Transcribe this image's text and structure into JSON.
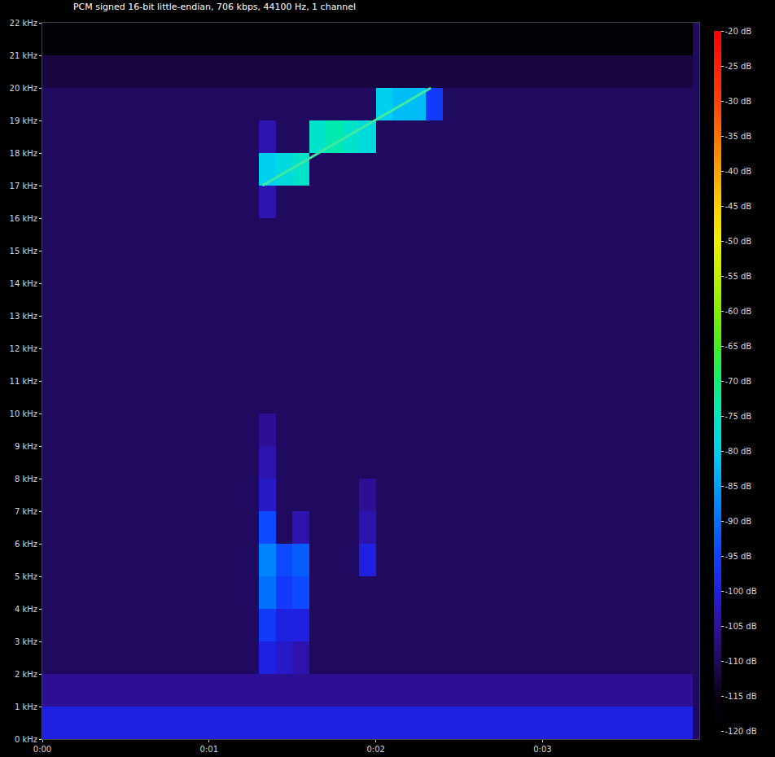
{
  "chart_data": {
    "type": "heatmap",
    "title": "PCM signed 16-bit little-endian, 706 kbps, 44100 Hz, 1 channel",
    "xlim": [
      0,
      3.94
    ],
    "xticks": [
      {
        "value": 0,
        "label": "0:00"
      },
      {
        "value": 1,
        "label": "0:01"
      },
      {
        "value": 2,
        "label": "0:02"
      },
      {
        "value": 3,
        "label": "0:03"
      }
    ],
    "ylim": [
      0,
      22
    ],
    "yticks": [
      {
        "value": 0,
        "label": "0 kHz"
      },
      {
        "value": 1,
        "label": "1 kHz"
      },
      {
        "value": 2,
        "label": "2 kHz"
      },
      {
        "value": 3,
        "label": "3 kHz"
      },
      {
        "value": 4,
        "label": "4 kHz"
      },
      {
        "value": 5,
        "label": "5 kHz"
      },
      {
        "value": 6,
        "label": "6 kHz"
      },
      {
        "value": 7,
        "label": "7 kHz"
      },
      {
        "value": 8,
        "label": "8 kHz"
      },
      {
        "value": 9,
        "label": "9 kHz"
      },
      {
        "value": 10,
        "label": "10 kHz"
      },
      {
        "value": 11,
        "label": "11 kHz"
      },
      {
        "value": 12,
        "label": "12 kHz"
      },
      {
        "value": 13,
        "label": "13 kHz"
      },
      {
        "value": 14,
        "label": "14 kHz"
      },
      {
        "value": 15,
        "label": "15 kHz"
      },
      {
        "value": 16,
        "label": "16 kHz"
      },
      {
        "value": 17,
        "label": "17 kHz"
      },
      {
        "value": 18,
        "label": "18 kHz"
      },
      {
        "value": 19,
        "label": "19 kHz"
      },
      {
        "value": 20,
        "label": "20 kHz"
      },
      {
        "value": 21,
        "label": "21 kHz"
      },
      {
        "value": 22,
        "label": "22 kHz"
      }
    ],
    "grid": false,
    "colorbar": {
      "range": [
        -120,
        -20
      ],
      "ticks": [
        {
          "value": -20,
          "label": "-20 dB"
        },
        {
          "value": -25,
          "label": "-25 dB"
        },
        {
          "value": -30,
          "label": "-30 dB"
        },
        {
          "value": -35,
          "label": "-35 dB"
        },
        {
          "value": -40,
          "label": "-40 dB"
        },
        {
          "value": -45,
          "label": "-45 dB"
        },
        {
          "value": -50,
          "label": "-50 dB"
        },
        {
          "value": -55,
          "label": "-55 dB"
        },
        {
          "value": -60,
          "label": "-60 dB"
        },
        {
          "value": -65,
          "label": "-65 dB"
        },
        {
          "value": -70,
          "label": "-70 dB"
        },
        {
          "value": -75,
          "label": "-75 dB"
        },
        {
          "value": -80,
          "label": "-80 dB"
        },
        {
          "value": -85,
          "label": "-85 dB"
        },
        {
          "value": -90,
          "label": "-90 dB"
        },
        {
          "value": -95,
          "label": "-95 dB"
        },
        {
          "value": -100,
          "label": "-100 dB"
        },
        {
          "value": -105,
          "label": "-105 dB"
        },
        {
          "value": -110,
          "label": "-110 dB"
        },
        {
          "value": -115,
          "label": "-115 dB"
        },
        {
          "value": -120,
          "label": "-120 dB"
        }
      ]
    },
    "x": [
      0.05,
      0.15,
      0.25,
      0.35,
      0.45,
      0.55,
      0.65,
      0.75,
      0.85,
      0.95,
      1.05,
      1.15,
      1.25,
      1.35,
      1.45,
      1.55,
      1.65,
      1.75,
      1.85,
      1.95,
      2.05,
      2.15,
      2.25,
      2.35,
      2.45,
      2.55,
      2.65,
      2.75,
      2.85,
      2.95,
      3.05,
      3.15,
      3.25,
      3.35,
      3.45,
      3.55,
      3.65,
      3.75,
      3.85
    ],
    "y": [
      0.5,
      1.5,
      2.5,
      3.5,
      4.5,
      5.5,
      6.5,
      7.5,
      8.5,
      9.5,
      10.5,
      11.5,
      12.5,
      13.5,
      14.5,
      15.5,
      16.5,
      17.5,
      18.5,
      19.5,
      20.5,
      21.5
    ],
    "z": [
      [
        -100,
        -100,
        -100,
        -100,
        -100,
        -100,
        -100,
        -100,
        -100,
        -100,
        -100,
        -100,
        -100,
        -100,
        -100,
        -100,
        -100,
        -100,
        -100,
        -100,
        -100,
        -100,
        -100,
        -100,
        -100,
        -100,
        -100,
        -100,
        -100,
        -100,
        -100,
        -100,
        -100,
        -100,
        -100,
        -100,
        -100,
        -100,
        -100
      ],
      [
        -106,
        -106,
        -106,
        -106,
        -106,
        -106,
        -106,
        -106,
        -106,
        -106,
        -106,
        -106,
        -106,
        -106,
        -106,
        -106,
        -106,
        -106,
        -106,
        -106,
        -106,
        -106,
        -106,
        -106,
        -106,
        -106,
        -106,
        -106,
        -106,
        -106,
        -106,
        -106,
        -106,
        -106,
        -106,
        -106,
        -106,
        -106,
        -106
      ],
      [
        -110,
        -110,
        -110,
        -110,
        -110,
        -110,
        -110,
        -110,
        -110,
        -110,
        -110,
        -110,
        -110,
        -100,
        -102,
        -104,
        -110,
        -110,
        -110,
        -110,
        -110,
        -110,
        -110,
        -110,
        -110,
        -110,
        -110,
        -110,
        -110,
        -110,
        -110,
        -110,
        -110,
        -110,
        -110,
        -110,
        -110,
        -110,
        -110
      ],
      [
        -110,
        -110,
        -110,
        -110,
        -110,
        -110,
        -110,
        -110,
        -110,
        -110,
        -110,
        -110,
        -110,
        -96,
        -100,
        -100,
        -110,
        -110,
        -110,
        -110,
        -110,
        -110,
        -110,
        -110,
        -110,
        -110,
        -110,
        -110,
        -110,
        -110,
        -110,
        -110,
        -110,
        -110,
        -110,
        -110,
        -110,
        -110,
        -110
      ],
      [
        -110,
        -110,
        -110,
        -110,
        -110,
        -110,
        -110,
        -110,
        -110,
        -110,
        -110,
        -110,
        -110,
        -90,
        -96,
        -94,
        -110,
        -110,
        -110,
        -110,
        -110,
        -110,
        -110,
        -110,
        -110,
        -110,
        -110,
        -110,
        -110,
        -110,
        -110,
        -110,
        -110,
        -110,
        -110,
        -110,
        -110,
        -110,
        -110
      ],
      [
        -110,
        -110,
        -110,
        -110,
        -110,
        -110,
        -110,
        -110,
        -110,
        -110,
        -110,
        -110,
        -110,
        -88,
        -94,
        -92,
        -110,
        -110,
        -110,
        -100,
        -110,
        -110,
        -110,
        -110,
        -110,
        -110,
        -110,
        -110,
        -110,
        -110,
        -110,
        -110,
        -110,
        -110,
        -110,
        -110,
        -110,
        -110,
        -110
      ],
      [
        -110,
        -110,
        -110,
        -110,
        -110,
        -110,
        -110,
        -110,
        -110,
        -110,
        -110,
        -110,
        -110,
        -94,
        -110,
        -104,
        -110,
        -110,
        -110,
        -104,
        -110,
        -110,
        -110,
        -110,
        -110,
        -110,
        -110,
        -110,
        -110,
        -110,
        -110,
        -110,
        -110,
        -110,
        -110,
        -110,
        -110,
        -110,
        -110
      ],
      [
        -110,
        -110,
        -110,
        -110,
        -110,
        -110,
        -110,
        -110,
        -110,
        -110,
        -110,
        -110,
        -110,
        -102,
        -110,
        -110,
        -110,
        -110,
        -110,
        -106,
        -110,
        -110,
        -110,
        -110,
        -110,
        -110,
        -110,
        -110,
        -110,
        -110,
        -110,
        -110,
        -110,
        -110,
        -110,
        -110,
        -110,
        -110,
        -110
      ],
      [
        -110,
        -110,
        -110,
        -110,
        -110,
        -110,
        -110,
        -110,
        -110,
        -110,
        -110,
        -110,
        -110,
        -104,
        -110,
        -110,
        -110,
        -110,
        -110,
        -110,
        -110,
        -110,
        -110,
        -110,
        -110,
        -110,
        -110,
        -110,
        -110,
        -110,
        -110,
        -110,
        -110,
        -110,
        -110,
        -110,
        -110,
        -110,
        -110
      ],
      [
        -110,
        -110,
        -110,
        -110,
        -110,
        -110,
        -110,
        -110,
        -110,
        -110,
        -110,
        -110,
        -110,
        -106,
        -110,
        -110,
        -110,
        -110,
        -110,
        -110,
        -110,
        -110,
        -110,
        -110,
        -110,
        -110,
        -110,
        -110,
        -110,
        -110,
        -110,
        -110,
        -110,
        -110,
        -110,
        -110,
        -110,
        -110,
        -110
      ],
      [
        -110,
        -110,
        -110,
        -110,
        -110,
        -110,
        -110,
        -110,
        -110,
        -110,
        -110,
        -110,
        -110,
        -110,
        -110,
        -110,
        -110,
        -110,
        -110,
        -110,
        -110,
        -110,
        -110,
        -110,
        -110,
        -110,
        -110,
        -110,
        -110,
        -110,
        -110,
        -110,
        -110,
        -110,
        -110,
        -110,
        -110,
        -110,
        -110
      ],
      [
        -110,
        -110,
        -110,
        -110,
        -110,
        -110,
        -110,
        -110,
        -110,
        -110,
        -110,
        -110,
        -110,
        -110,
        -110,
        -110,
        -110,
        -110,
        -110,
        -110,
        -110,
        -110,
        -110,
        -110,
        -110,
        -110,
        -110,
        -110,
        -110,
        -110,
        -110,
        -110,
        -110,
        -110,
        -110,
        -110,
        -110,
        -110,
        -110
      ],
      [
        -110,
        -110,
        -110,
        -110,
        -110,
        -110,
        -110,
        -110,
        -110,
        -110,
        -110,
        -110,
        -110,
        -110,
        -110,
        -110,
        -110,
        -110,
        -110,
        -110,
        -110,
        -110,
        -110,
        -110,
        -110,
        -110,
        -110,
        -110,
        -110,
        -110,
        -110,
        -110,
        -110,
        -110,
        -110,
        -110,
        -110,
        -110,
        -110
      ],
      [
        -110,
        -110,
        -110,
        -110,
        -110,
        -110,
        -110,
        -110,
        -110,
        -110,
        -110,
        -110,
        -110,
        -110,
        -110,
        -110,
        -110,
        -110,
        -110,
        -110,
        -110,
        -110,
        -110,
        -110,
        -110,
        -110,
        -110,
        -110,
        -110,
        -110,
        -110,
        -110,
        -110,
        -110,
        -110,
        -110,
        -110,
        -110,
        -110
      ],
      [
        -110,
        -110,
        -110,
        -110,
        -110,
        -110,
        -110,
        -110,
        -110,
        -110,
        -110,
        -110,
        -110,
        -110,
        -110,
        -110,
        -110,
        -110,
        -110,
        -110,
        -110,
        -110,
        -110,
        -110,
        -110,
        -110,
        -110,
        -110,
        -110,
        -110,
        -110,
        -110,
        -110,
        -110,
        -110,
        -110,
        -110,
        -110,
        -110
      ],
      [
        -110,
        -110,
        -110,
        -110,
        -110,
        -110,
        -110,
        -110,
        -110,
        -110,
        -110,
        -110,
        -110,
        -110,
        -110,
        -110,
        -110,
        -110,
        -110,
        -110,
        -110,
        -110,
        -110,
        -110,
        -110,
        -110,
        -110,
        -110,
        -110,
        -110,
        -110,
        -110,
        -110,
        -110,
        -110,
        -110,
        -110,
        -110,
        -110
      ],
      [
        -110,
        -110,
        -110,
        -110,
        -110,
        -110,
        -110,
        -110,
        -110,
        -110,
        -110,
        -110,
        -110,
        -104,
        -110,
        -110,
        -110,
        -110,
        -110,
        -110,
        -110,
        -110,
        -110,
        -110,
        -110,
        -110,
        -110,
        -110,
        -110,
        -110,
        -110,
        -110,
        -110,
        -110,
        -110,
        -110,
        -110,
        -110,
        -110
      ],
      [
        -110,
        -110,
        -110,
        -110,
        -110,
        -110,
        -110,
        -110,
        -110,
        -110,
        -110,
        -110,
        -110,
        -80,
        -78,
        -76,
        -110,
        -110,
        -110,
        -110,
        -110,
        -110,
        -110,
        -110,
        -110,
        -110,
        -110,
        -110,
        -110,
        -110,
        -110,
        -110,
        -110,
        -110,
        -110,
        -110,
        -110,
        -110,
        -110
      ],
      [
        -110,
        -110,
        -110,
        -110,
        -110,
        -110,
        -110,
        -110,
        -110,
        -110,
        -110,
        -110,
        -110,
        -104,
        -110,
        -110,
        -76,
        -74,
        -76,
        -78,
        -110,
        -110,
        -110,
        -110,
        -110,
        -110,
        -110,
        -110,
        -110,
        -110,
        -110,
        -110,
        -110,
        -110,
        -110,
        -110,
        -110,
        -110,
        -110
      ],
      [
        -110,
        -110,
        -110,
        -110,
        -110,
        -110,
        -110,
        -110,
        -110,
        -110,
        -110,
        -110,
        -110,
        -110,
        -110,
        -110,
        -110,
        -110,
        -110,
        -110,
        -80,
        -82,
        -82,
        -96,
        -110,
        -110,
        -110,
        -110,
        -110,
        -110,
        -110,
        -110,
        -110,
        -110,
        -110,
        -110,
        -110,
        -110,
        -110
      ],
      [
        -112,
        -112,
        -112,
        -112,
        -112,
        -112,
        -112,
        -112,
        -112,
        -112,
        -112,
        -112,
        -112,
        -112,
        -112,
        -112,
        -112,
        -112,
        -112,
        -112,
        -112,
        -112,
        -112,
        -112,
        -112,
        -112,
        -112,
        -112,
        -112,
        -112,
        -112,
        -112,
        -112,
        -112,
        -112,
        -112,
        -112,
        -112,
        -112
      ],
      [
        -118,
        -118,
        -118,
        -118,
        -118,
        -118,
        -118,
        -118,
        -118,
        -118,
        -118,
        -118,
        -118,
        -118,
        -118,
        -118,
        -118,
        -118,
        -118,
        -118,
        -118,
        -118,
        -118,
        -118,
        -118,
        -118,
        -118,
        -118,
        -118,
        -118,
        -118,
        -118,
        -118,
        -118,
        -118,
        -118,
        -118,
        -118,
        -118
      ]
    ],
    "series": [
      {
        "type": "line",
        "color": "#40e8a0",
        "x": [
          1.32,
          2.33
        ],
        "y": [
          17,
          20
        ]
      }
    ]
  }
}
